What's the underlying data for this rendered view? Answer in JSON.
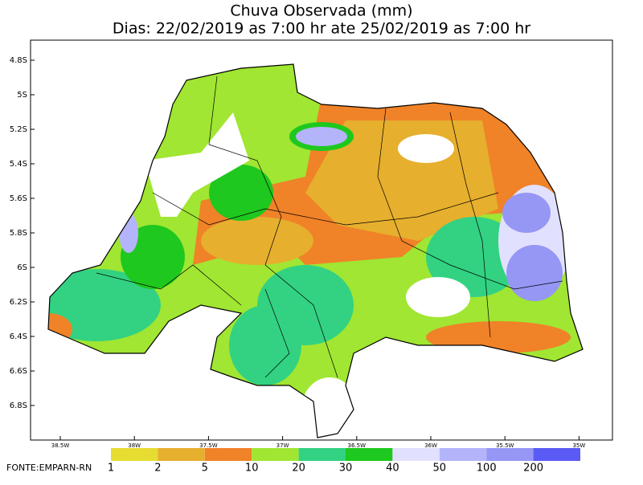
{
  "title": [
    "Chuva Observada (mm)",
    "Dias: 22/02/2019 as 7:00 hr ate 25/02/2019 as 7:00 hr"
  ],
  "map": {
    "lat_labels": [
      "4.8S",
      "5S",
      "5.2S",
      "5.4S",
      "5.6S",
      "5.8S",
      "6S",
      "6.2S",
      "6.4S",
      "6.6S",
      "6.8S"
    ],
    "lon_labels": [
      "38.5W",
      "38W",
      "37.5W",
      "37W",
      "36.5W",
      "36W",
      "35.5W",
      "35W"
    ]
  },
  "legend": {
    "labels": [
      1,
      2,
      5,
      10,
      20,
      30,
      40,
      50,
      100,
      200
    ],
    "colors": [
      "#e6dc32",
      "#e6af2d",
      "#f08228",
      "#a0e632",
      "#32d282",
      "#1ec81e",
      "#e1e1ff",
      "#b4b4fa",
      "#9696f5",
      "#5a5af5"
    ]
  },
  "source": "FONTE:EMPARN-RN"
}
